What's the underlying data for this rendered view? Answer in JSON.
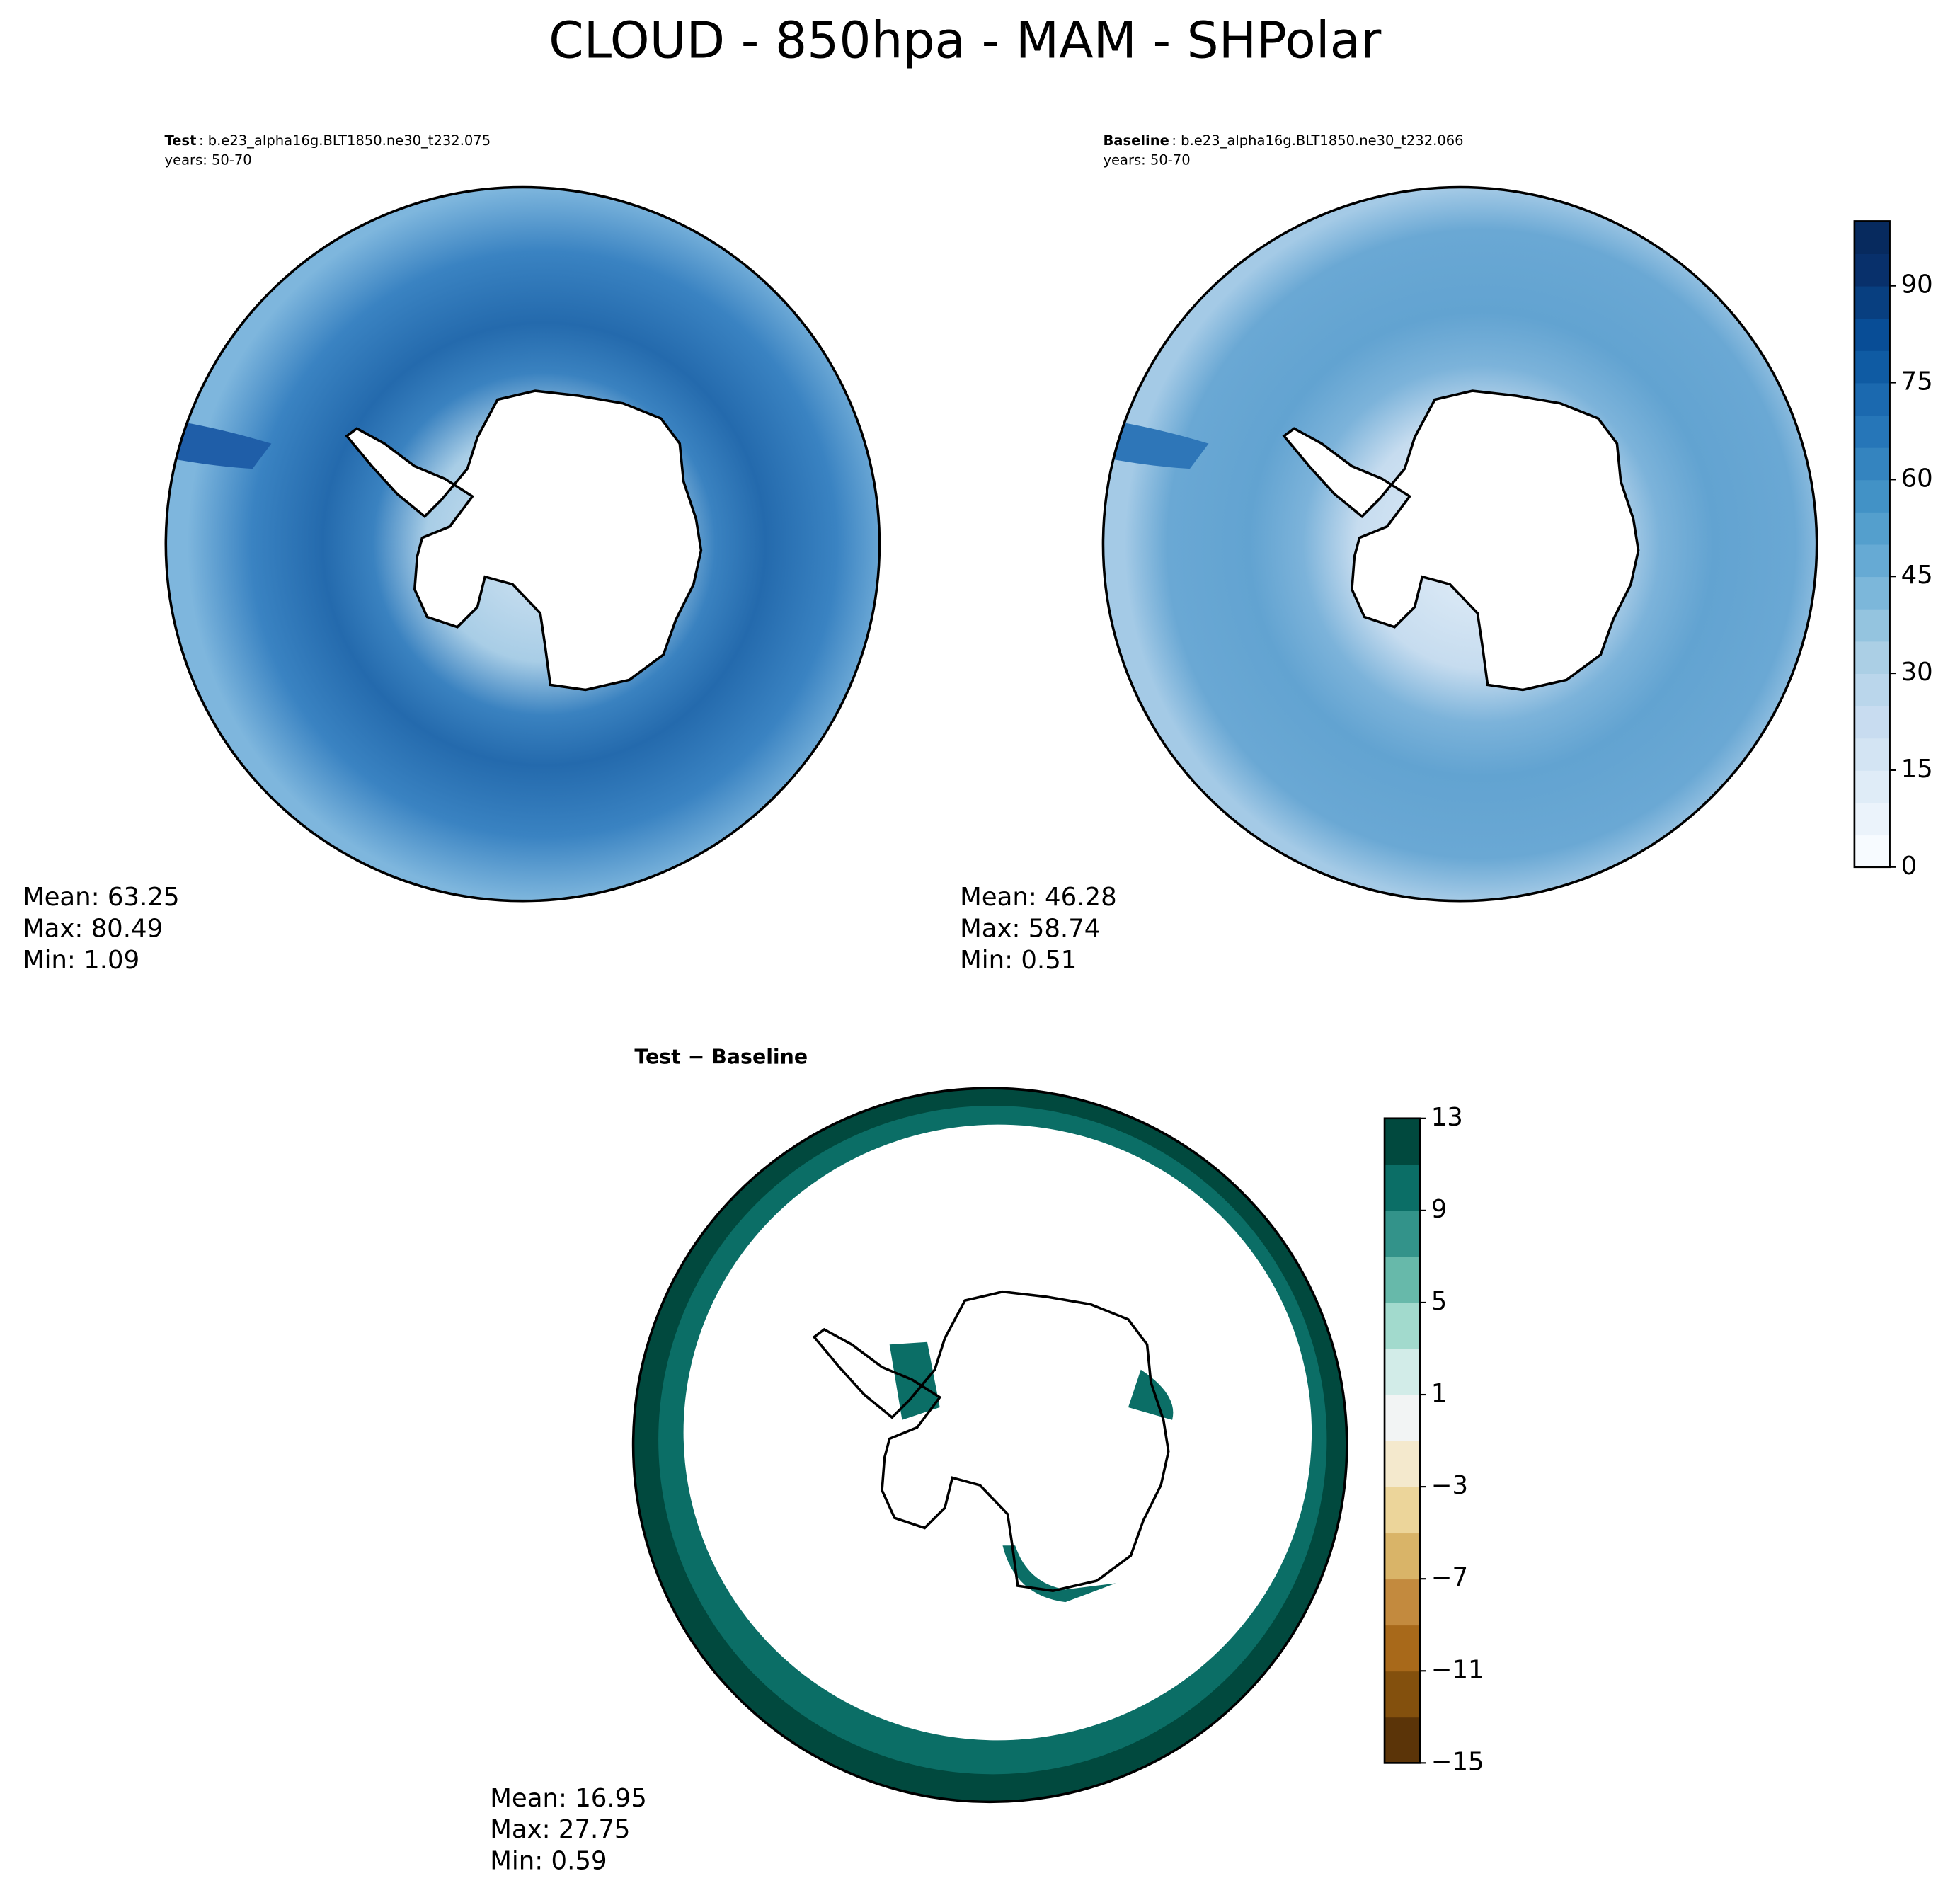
{
  "title": "CLOUD - 850hpa - MAM - SHPolar",
  "panels": [
    {
      "label": "Test",
      "case": ": b.e23_alpha16g.BLT1850.ne30_t232.075",
      "years": "years: 50-70",
      "stats": [
        "Mean: 63.25",
        "Max: 80.49",
        "Min:  1.09"
      ]
    },
    {
      "label": "Baseline",
      "case": ": b.e23_alpha16g.BLT1850.ne30_t232.066",
      "years": "years: 50-70",
      "stats": [
        "Mean: 46.28",
        "Max: 58.74",
        "Min:  0.51"
      ]
    },
    {
      "label": "Test − Baseline",
      "stats": [
        "Mean: 16.95",
        "Max: 27.75",
        "Min:  0.59"
      ]
    }
  ],
  "colorbars": [
    {
      "lim": [
        0,
        100
      ],
      "ticks": [
        0,
        15,
        30,
        45,
        60,
        75,
        90
      ],
      "colors": [
        "#f7fbff",
        "#ebf3fb",
        "#dfecf7",
        "#d3e4f3",
        "#c8dcf0",
        "#bad6eb",
        "#abcfe5",
        "#94c4df",
        "#7cb7da",
        "#66aad4",
        "#549fcd",
        "#4292c6",
        "#3484bf",
        "#2676b8",
        "#1b69af",
        "#0f5ba3",
        "#084d96",
        "#083f80",
        "#08306b",
        "#072a5e"
      ]
    },
    {
      "lim": [
        -15,
        13
      ],
      "ticks": [
        {
          "value": -15,
          "label": "−15"
        },
        {
          "value": -11,
          "label": "−11"
        },
        {
          "value": -7,
          "label": "−7"
        },
        {
          "value": -3,
          "label": "−3"
        },
        1,
        5,
        9,
        13
      ],
      "colors": [
        "#5b3408",
        "#83500d",
        "#a8691a",
        "#c38a3e",
        "#d9b468",
        "#ecd59a",
        "#f4e9cd",
        "#f2f4f4",
        "#d2ece8",
        "#a2dacd",
        "#67b9aa",
        "#33938a",
        "#0b6e66",
        "#01493e"
      ]
    }
  ]
}
